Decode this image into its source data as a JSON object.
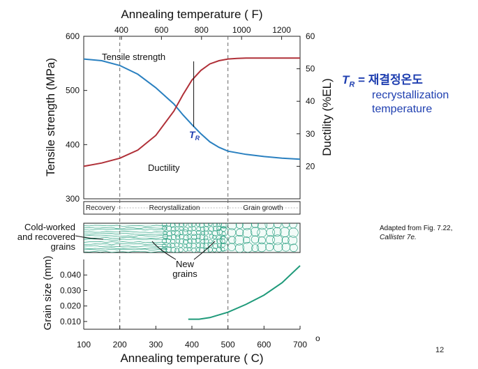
{
  "slide": {
    "tr_symbol": "T",
    "tr_subscript": "R",
    "tr_equals": "=",
    "tr_korean": "재결정온도",
    "tr_desc_line1": "recrystallization",
    "tr_desc_line2": "temperature",
    "adapted_prefix": "Adapted from Fig. 7.22,",
    "adapted_source": "Callister 7e.",
    "page_number": "12",
    "degree_mark": "o"
  },
  "chart_data": [
    {
      "type": "line",
      "title": "",
      "xlabel": "Annealing temperature ( C)",
      "xlabel_top": "Annealing temperature ( F)",
      "ylabel": "Tensile strength (MPa)",
      "ylabel_right": "Ductility (%EL)",
      "xlim": [
        100,
        700
      ],
      "ylim": [
        300,
        600
      ],
      "ylim_right": [
        10,
        60
      ],
      "x_ticks": [
        100,
        200,
        300,
        400,
        500,
        600,
        700
      ],
      "top_ticks_F": [
        400,
        600,
        800,
        1000,
        1200
      ],
      "y_ticks": [
        300,
        400,
        500,
        600
      ],
      "y_ticks_right": [
        20,
        30,
        40,
        50,
        60
      ],
      "stage_boundaries_C": [
        200,
        500
      ],
      "stages": [
        "Recovery",
        "Recrystallization",
        "Grain growth"
      ],
      "tr_marker": {
        "label": "T",
        "subscript": "R",
        "x": 405
      },
      "series": [
        {
          "name": "Tensile strength",
          "axis": "left",
          "color": "#2a80c0",
          "x": [
            100,
            150,
            200,
            250,
            300,
            350,
            375,
            400,
            425,
            450,
            475,
            500,
            550,
            600,
            650,
            700
          ],
          "y": [
            558,
            555,
            546,
            530,
            505,
            475,
            455,
            437,
            420,
            405,
            395,
            388,
            382,
            378,
            375,
            373
          ]
        },
        {
          "name": "Ductility",
          "axis": "right",
          "color": "#b03038",
          "x": [
            100,
            150,
            200,
            250,
            300,
            350,
            375,
            400,
            425,
            450,
            475,
            500,
            525,
            550,
            600,
            650,
            700
          ],
          "y": [
            20,
            21,
            22.5,
            25,
            29.5,
            37,
            42,
            46.5,
            49.5,
            51.5,
            52.5,
            53,
            53.2,
            53.3,
            53.3,
            53.3,
            53.3
          ]
        }
      ]
    },
    {
      "type": "line",
      "title": "",
      "xlabel": "Annealing temperature ( C)",
      "ylabel": "Grain size (mm)",
      "xlim": [
        100,
        700
      ],
      "ylim": [
        0.005,
        0.05
      ],
      "x_ticks": [
        100,
        200,
        300,
        400,
        500,
        600,
        700
      ],
      "y_ticks": [
        0.01,
        0.02,
        0.03,
        0.04
      ],
      "y_tick_labels": [
        "0.010",
        "0.020",
        "0.030",
        "0.040"
      ],
      "microstructure_labels": {
        "cold_worked": [
          "Cold-worked",
          "and recovered",
          "grains"
        ],
        "new_grains": [
          "New",
          "grains"
        ]
      },
      "series": [
        {
          "name": "",
          "color": "#1f9a7a",
          "x": [
            390,
            420,
            450,
            500,
            550,
            600,
            650,
            700
          ],
          "y": [
            0.0115,
            0.0115,
            0.0125,
            0.016,
            0.021,
            0.027,
            0.035,
            0.046
          ]
        }
      ]
    }
  ]
}
